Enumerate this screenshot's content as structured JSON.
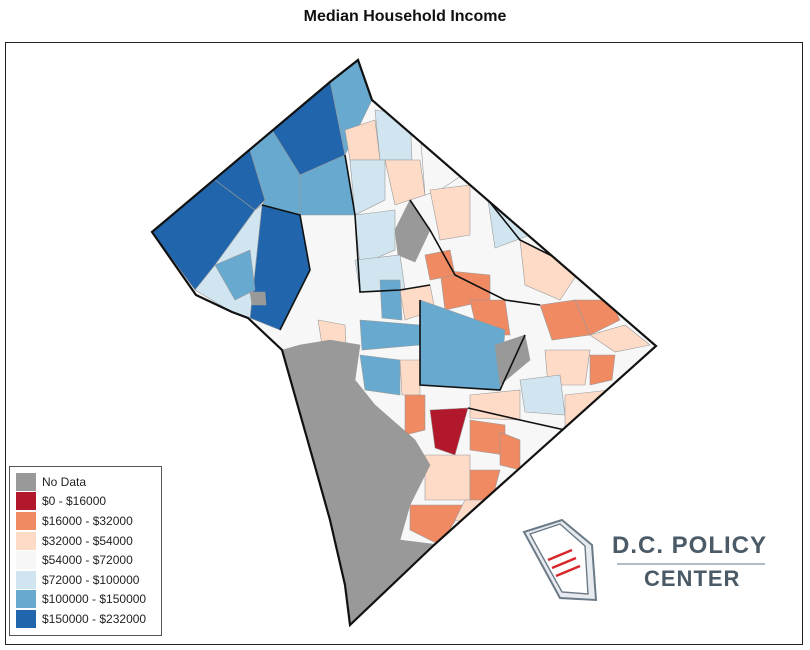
{
  "title": "Median Household Income",
  "legend": {
    "items": [
      {
        "label": "No Data",
        "color": "#999999"
      },
      {
        "label": "$0 - $16000",
        "color": "#b2182b"
      },
      {
        "label": "$16000 - $32000",
        "color": "#ef8a62"
      },
      {
        "label": "$32000 - $54000",
        "color": "#fddbc7"
      },
      {
        "label": "$54000 - $72000",
        "color": "#f7f7f7"
      },
      {
        "label": "$72000 - $100000",
        "color": "#d1e5f0"
      },
      {
        "label": "$100000 - $150000",
        "color": "#67a9cf"
      },
      {
        "label": "$150000 - $232000",
        "color": "#2166ac"
      }
    ]
  },
  "logo": {
    "line1": "D.C. POLICY",
    "line2": "CENTER",
    "text_color": "#4b5a67",
    "accent_color": "#d9262b"
  }
}
